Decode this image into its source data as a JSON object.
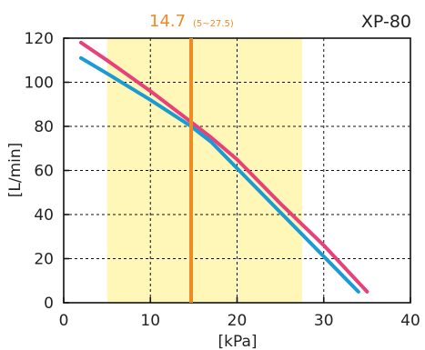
{
  "colors": {
    "operating_range_fill": "#fff7b8",
    "marker": "#f08a24",
    "series_pink": "#e8417a",
    "series_blue": "#1a9ad6",
    "grid": "#111111",
    "frame": "#111111"
  },
  "chart_data": {
    "type": "line",
    "title": "XP-80",
    "xlabel": "[kPa]",
    "ylabel": "[L/min]",
    "xlim": [
      0,
      40
    ],
    "ylim": [
      0,
      120
    ],
    "x_ticks": [
      0,
      10,
      20,
      30,
      40
    ],
    "x_tick_labels": [
      "0",
      "10",
      "20",
      "30",
      "40"
    ],
    "y_ticks": [
      0,
      20,
      40,
      60,
      80,
      100,
      120
    ],
    "y_tick_labels": [
      "0",
      "20",
      "40",
      "60",
      "80",
      "100",
      "120"
    ],
    "grid": true,
    "grid_style": "dashed",
    "shaded_range": {
      "x_start": 5,
      "x_end": 27.5
    },
    "marker": {
      "x": 14.7,
      "label": "14.7",
      "range_label": "(5~27.5)"
    },
    "series": [
      {
        "color": "pink",
        "x": [
          2,
          5,
          10,
          14.7,
          17,
          20,
          25,
          30,
          35
        ],
        "y": [
          118,
          110,
          96,
          82,
          75,
          65,
          45,
          26,
          5
        ]
      },
      {
        "color": "blue",
        "x": [
          2,
          5,
          10,
          14.7,
          17,
          20,
          25,
          30,
          34
        ],
        "y": [
          111,
          104,
          92,
          80,
          73,
          61,
          41,
          21,
          5
        ]
      }
    ]
  }
}
